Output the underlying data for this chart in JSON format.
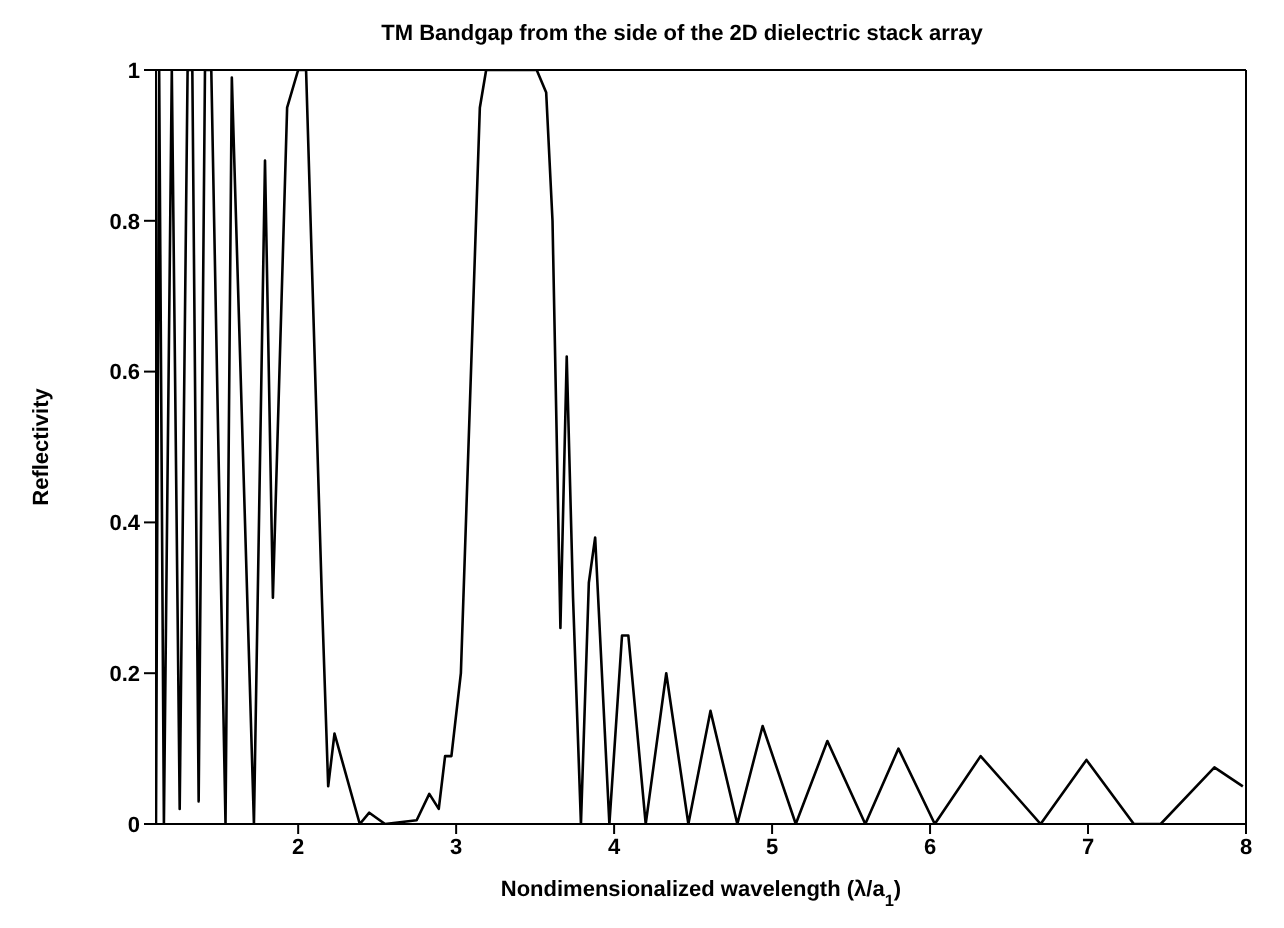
{
  "chart_data": {
    "type": "line",
    "title": "TM Bandgap from the side of the 2D dielectric stack array",
    "xlabel": "Nondimensionalized wavelength (λ/a$_{1}$)",
    "ylabel": "Reflectivity",
    "xlim": [
      1.1,
      8
    ],
    "xticks": [
      2,
      3,
      4,
      5,
      6,
      7,
      8
    ],
    "ylim": [
      0,
      1
    ],
    "yticks": [
      0,
      0.2,
      0.4,
      0.6,
      0.8,
      1
    ],
    "grid": false,
    "legend": false,
    "marker": "none",
    "line_style": "solid",
    "series": [
      {
        "color": "#000000",
        "x": [
          1.1,
          1.12,
          1.15,
          1.2,
          1.25,
          1.3,
          1.33,
          1.37,
          1.41,
          1.45,
          1.54,
          1.58,
          1.72,
          1.79,
          1.84,
          1.93,
          2.0,
          2.05,
          2.15,
          2.19,
          2.23,
          2.39,
          2.45,
          2.55,
          2.75,
          2.83,
          2.89,
          2.93,
          2.97,
          3.03,
          3.15,
          3.19,
          3.51,
          3.57,
          3.61,
          3.66,
          3.7,
          3.74,
          3.79,
          3.84,
          3.88,
          3.97,
          4.05,
          4.09,
          4.2,
          4.33,
          4.47,
          4.61,
          4.78,
          4.94,
          5.15,
          5.35,
          5.59,
          5.8,
          6.03,
          6.32,
          6.7,
          6.99,
          7.29,
          7.46,
          7.8,
          7.98
        ],
        "values": [
          0,
          1,
          0,
          1,
          0.02,
          1,
          1,
          0.03,
          1,
          1,
          0,
          0.99,
          0,
          0.88,
          0.3,
          0.95,
          1,
          1,
          0.3,
          0.05,
          0.12,
          0,
          0.015,
          0,
          0.005,
          0.04,
          0.02,
          0.09,
          0.09,
          0.2,
          0.95,
          1,
          1,
          0.97,
          0.8,
          0.26,
          0.62,
          0.3,
          0,
          0.32,
          0.38,
          0,
          0.25,
          0.25,
          0,
          0.2,
          0,
          0.15,
          0,
          0.13,
          0,
          0.11,
          0,
          0.1,
          0,
          0.09,
          0,
          0.085,
          0,
          0,
          0.075,
          0.05
        ]
      }
    ]
  }
}
